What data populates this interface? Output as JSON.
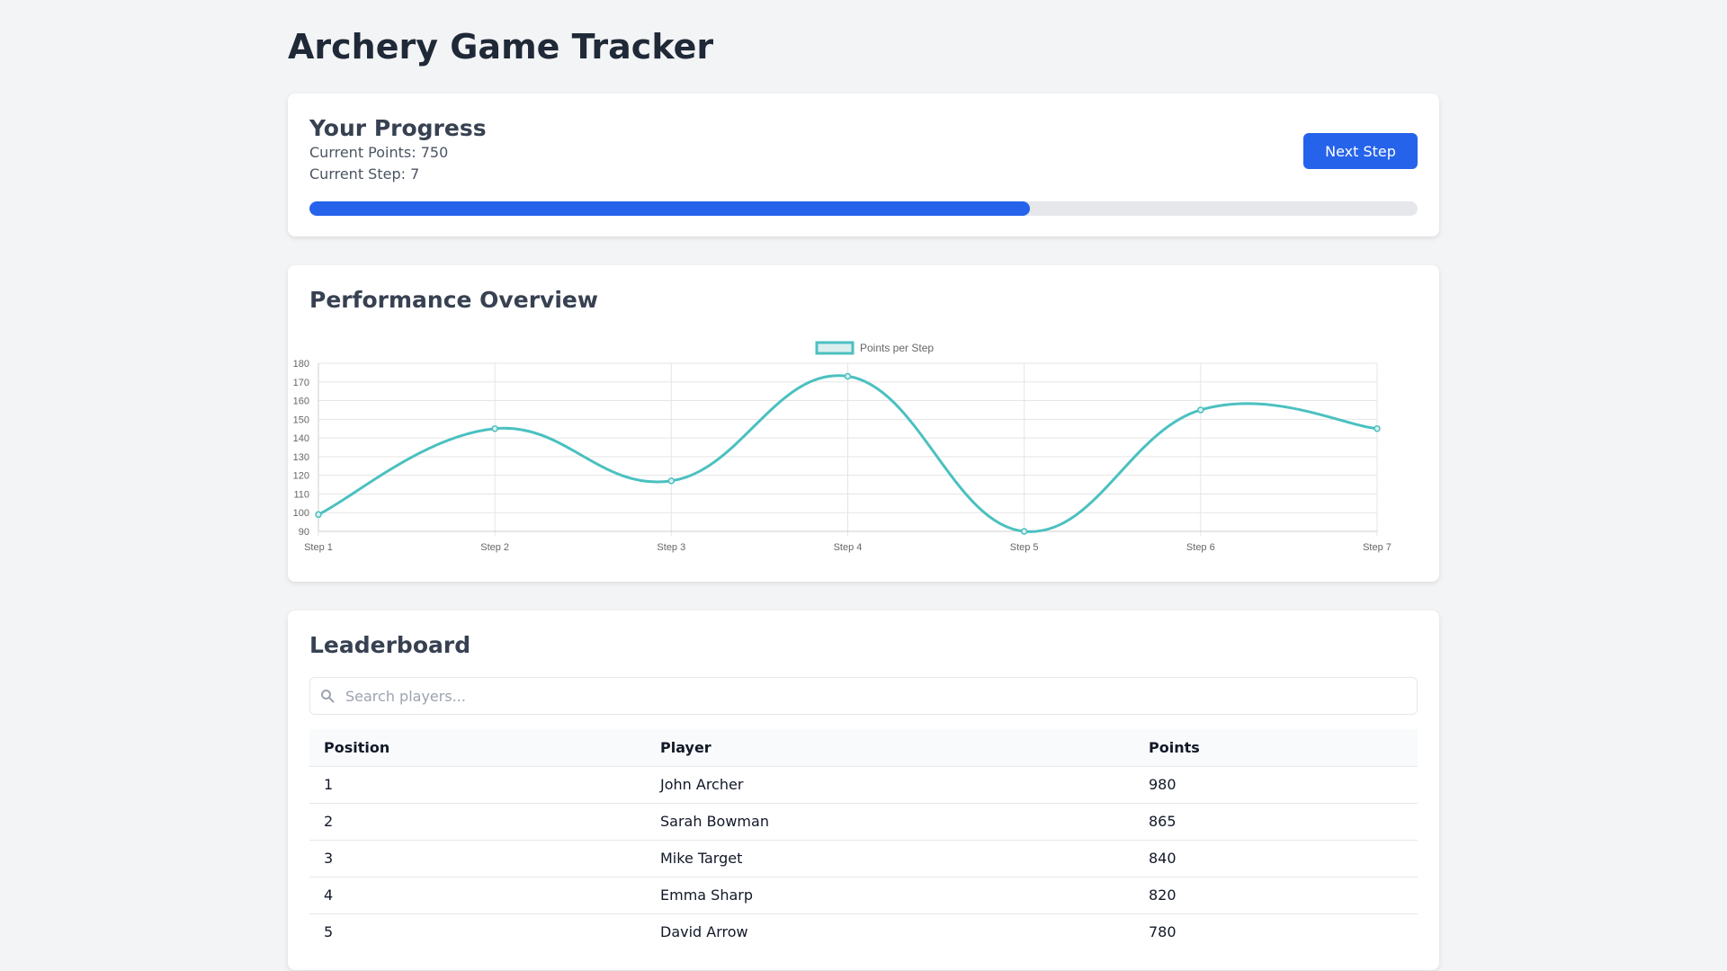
{
  "app": {
    "title": "Archery Game Tracker"
  },
  "progress": {
    "heading": "Your Progress",
    "points_text": "Current Points: 750",
    "step_text": "Current Step: 7",
    "button_label": "Next Step",
    "fill_fraction": 0.65,
    "colors": {
      "accent": "#2563eb",
      "track": "#e5e7eb"
    }
  },
  "performance": {
    "heading": "Performance Overview"
  },
  "chart_data": {
    "type": "line",
    "categories": [
      "Step 1",
      "Step 2",
      "Step 3",
      "Step 4",
      "Step 5",
      "Step 6",
      "Step 7"
    ],
    "series": [
      {
        "name": "Points per Step",
        "values": [
          99,
          145,
          117,
          173,
          90,
          155,
          145
        ],
        "color": "#4bc0c0"
      }
    ],
    "ylim": [
      90,
      180
    ],
    "yticks": [
      "90",
      "100",
      "110",
      "120",
      "130",
      "140",
      "150",
      "160",
      "170",
      "180"
    ],
    "grid": true,
    "legend": "top-center"
  },
  "leaderboard": {
    "heading": "Leaderboard",
    "search_placeholder": "Search players...",
    "search_value": "",
    "columns": [
      "Position",
      "Player",
      "Points"
    ],
    "rows": [
      {
        "position": "1",
        "player": "John Archer",
        "points": "980"
      },
      {
        "position": "2",
        "player": "Sarah Bowman",
        "points": "865"
      },
      {
        "position": "3",
        "player": "Mike Target",
        "points": "840"
      },
      {
        "position": "4",
        "player": "Emma Sharp",
        "points": "820"
      },
      {
        "position": "5",
        "player": "David Arrow",
        "points": "780"
      }
    ]
  }
}
